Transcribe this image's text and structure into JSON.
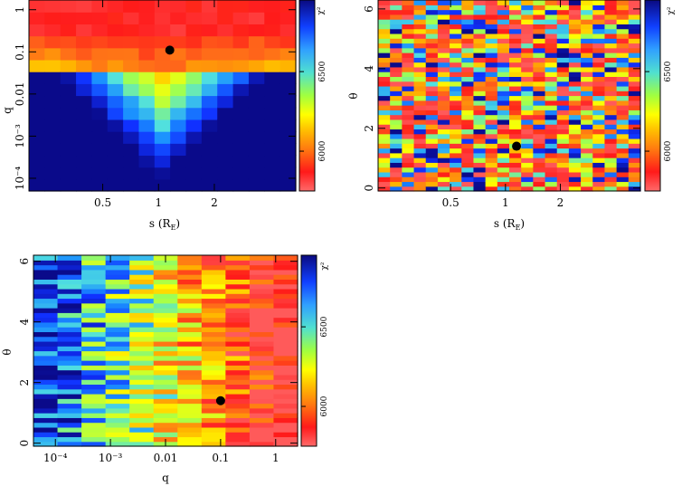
{
  "colors": {
    "stops": [
      "#ff5a5a",
      "#ff1a1a",
      "#ff6a1a",
      "#ffb000",
      "#ffff00",
      "#a0ff50",
      "#50e0e0",
      "#1a90ff",
      "#1030ff",
      "#0a0a8a"
    ],
    "marker": "#000000"
  },
  "chart_data": [
    {
      "id": "s-vs-q",
      "type": "heatmap",
      "title": "",
      "xlabel": "s (R_E)",
      "ylabel": "q",
      "x_scale": "log",
      "y_scale": "log",
      "xlim": [
        0.2,
        5.5
      ],
      "ylim": [
        5e-05,
        1.7
      ],
      "nx": 17,
      "ny": 16,
      "x_ticks": [
        {
          "value": 0.5,
          "label": "0.5"
        },
        {
          "value": 1,
          "label": "1"
        },
        {
          "value": 2,
          "label": "2"
        }
      ],
      "y_ticks": [
        {
          "value": 0.0001,
          "label": "10⁻⁴"
        },
        {
          "value": 0.001,
          "label": "10⁻³"
        },
        {
          "value": 0.01,
          "label": "0.01"
        },
        {
          "value": 0.1,
          "label": "0.1"
        },
        {
          "value": 1,
          "label": "1"
        }
      ],
      "best_fit": {
        "x": 1.15,
        "y": 0.11
      },
      "colorbar": {
        "label": "χ²",
        "ticks": [
          {
            "value": 6000,
            "label": "6000"
          },
          {
            "value": 6500,
            "label": "6500"
          }
        ],
        "range": [
          5750,
          6950
        ]
      }
    },
    {
      "id": "s-vs-theta",
      "type": "heatmap",
      "title": "",
      "xlabel": "s (R_E)",
      "ylabel": "θ",
      "x_scale": "log",
      "y_scale": "linear",
      "xlim": [
        0.2,
        5.5
      ],
      "ylim": [
        -0.1,
        6.3
      ],
      "nx": 22,
      "ny": 40,
      "x_ticks": [
        {
          "value": 0.5,
          "label": "0.5"
        },
        {
          "value": 1,
          "label": "1"
        },
        {
          "value": 2,
          "label": "2"
        }
      ],
      "y_ticks": [
        {
          "value": 0,
          "label": "0"
        },
        {
          "value": 2,
          "label": "2"
        },
        {
          "value": 4,
          "label": "4"
        },
        {
          "value": 6,
          "label": "6"
        }
      ],
      "best_fit": {
        "x": 1.15,
        "y": 1.4
      },
      "colorbar": {
        "label": "χ²",
        "ticks": [
          {
            "value": 6000,
            "label": "6000"
          },
          {
            "value": 6500,
            "label": "6500"
          }
        ],
        "range": [
          5750,
          6950
        ]
      }
    },
    {
      "id": "q-vs-theta",
      "type": "heatmap",
      "title": "",
      "xlabel": "q",
      "ylabel": "θ",
      "x_scale": "log",
      "y_scale": "linear",
      "xlim": [
        4e-05,
        2.5
      ],
      "ylim": [
        -0.1,
        6.2
      ],
      "nx": 11,
      "ny": 40,
      "x_ticks": [
        {
          "value": 0.0001,
          "label": "10⁻⁴"
        },
        {
          "value": 0.001,
          "label": "10⁻³"
        },
        {
          "value": 0.01,
          "label": "0.01"
        },
        {
          "value": 0.1,
          "label": "0.1"
        },
        {
          "value": 1,
          "label": "1"
        }
      ],
      "y_ticks": [
        {
          "value": 0,
          "label": "0"
        },
        {
          "value": 2,
          "label": "2"
        },
        {
          "value": 4,
          "label": "4"
        },
        {
          "value": 6,
          "label": "6"
        }
      ],
      "best_fit": {
        "x": 0.1,
        "y": 1.4
      },
      "colorbar": {
        "label": "χ²",
        "ticks": [
          {
            "value": 6000,
            "label": "6000"
          },
          {
            "value": 6500,
            "label": "6500"
          }
        ],
        "range": [
          5750,
          6950
        ]
      }
    }
  ]
}
